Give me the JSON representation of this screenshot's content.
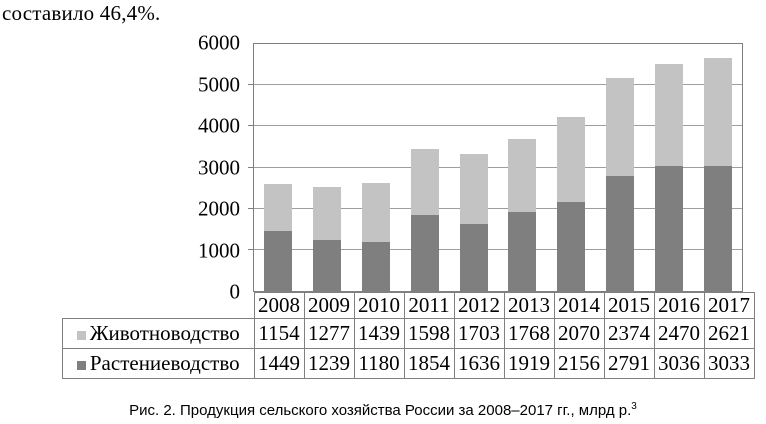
{
  "page": {
    "intro_text": "составило 46,4%.",
    "caption": {
      "text": "Рис. 2. Продукция сельского хозяйства России за 2008–2017 гг., млрд р.",
      "superscript": "3"
    }
  },
  "chart_data": {
    "type": "bar",
    "stacked": true,
    "title": "Рис. 2. Продукция сельского хозяйства России за 2008–2017 гг., млрд р.",
    "xlabel": "",
    "ylabel": "",
    "categories": [
      "2008",
      "2009",
      "2010",
      "2011",
      "2012",
      "2013",
      "2014",
      "2015",
      "2016",
      "2017"
    ],
    "series": [
      {
        "name": "Животноводство",
        "color": "#c3c3c3",
        "values": [
          1154,
          1277,
          1439,
          1598,
          1703,
          1768,
          2070,
          2374,
          2470,
          2621
        ]
      },
      {
        "name": "Растениеводство",
        "color": "#7f7f7f",
        "values": [
          1449,
          1239,
          1180,
          1854,
          1636,
          1919,
          2156,
          2791,
          3036,
          3033
        ]
      }
    ],
    "stack_bottom_to_top": [
      "Растениеводство",
      "Животноводство"
    ],
    "y_axis": {
      "min": 0,
      "max": 6000,
      "step": 1000,
      "tick_labels": [
        "0",
        "1000",
        "2000",
        "3000",
        "4000",
        "5000",
        "6000"
      ]
    },
    "grid": true,
    "legend_position": "data-table-left",
    "colors": {
      "grid": "#9e9e9e",
      "border": "#808080",
      "text": "#000000",
      "background": "#ffffff"
    }
  }
}
